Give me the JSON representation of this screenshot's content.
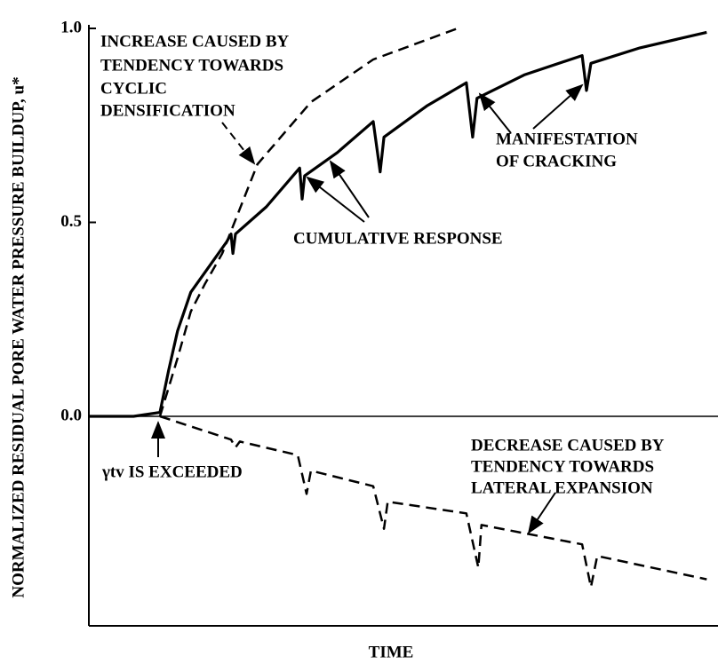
{
  "chart_data": {
    "type": "line",
    "y_label": "NORMALIZED RESIDUAL PORE WATER PRESSURE BUILDUP, u*",
    "x_label": "TIME",
    "xlim": [
      0,
      100
    ],
    "ylim": [
      -0.54,
      1.0
    ],
    "yticks": [
      {
        "value": 0,
        "label": "0.0"
      },
      0.5,
      {
        "value": 1,
        "label": "1.0"
      }
    ],
    "series": [
      {
        "color": "#000000",
        "style": "dashed",
        "x": [
          11.3,
          14.1,
          16.2,
          18.4,
          21.2,
          26.8,
          35.3,
          45.2,
          58.6
        ],
        "values": [
          0.0,
          0.15,
          0.27,
          0.34,
          0.42,
          0.65,
          0.81,
          0.92,
          1.0
        ]
      },
      {
        "color": "#000000",
        "style": "solid",
        "x": [
          0,
          7.1,
          11.3,
          12.7,
          14.1,
          16.2,
          18.4,
          21.9,
          22.6,
          22.9,
          23.3,
          28.2,
          33.5,
          33.9,
          34.3,
          39.5,
          45.2,
          46.3,
          46.9,
          53.7,
          60.0,
          61.0,
          61.7,
          69.2,
          78.4,
          79.1,
          79.8,
          87.6,
          98.2
        ],
        "values": [
          0.0,
          0.0,
          0.01,
          0.12,
          0.22,
          0.32,
          0.37,
          0.45,
          0.47,
          0.42,
          0.47,
          0.54,
          0.64,
          0.56,
          0.62,
          0.68,
          0.76,
          0.63,
          0.72,
          0.8,
          0.86,
          0.72,
          0.82,
          0.88,
          0.93,
          0.84,
          0.91,
          0.95,
          0.99
        ]
      },
      {
        "color": "#000000",
        "style": "dashed",
        "x": [
          11.3,
          22.6,
          23.3,
          24.0,
          33.2,
          34.6,
          35.3,
          45.2,
          46.9,
          47.5,
          60.0,
          61.9,
          62.4,
          78.4,
          79.8,
          80.8,
          98.2
        ],
        "values": [
          0.0,
          -0.06,
          -0.08,
          -0.065,
          -0.1,
          -0.2,
          -0.14,
          -0.18,
          -0.29,
          -0.22,
          -0.25,
          -0.39,
          -0.28,
          -0.33,
          -0.44,
          -0.36,
          -0.42
        ]
      }
    ],
    "annotations": [
      {
        "lines": [
          "INCREASE CAUSED BY",
          "TENDENCY TOWARDS",
          "CYCLIC",
          "DENSIFICATION"
        ]
      },
      {
        "lines": [
          "MANIFESTATION",
          "OF CRACKING"
        ]
      },
      {
        "lines": [
          "CUMULATIVE RESPONSE"
        ]
      },
      {
        "lines": [
          "γtv IS EXCEEDED"
        ]
      },
      {
        "lines": [
          "DECREASE CAUSED BY",
          "TENDENCY TOWARDS",
          "LATERAL EXPANSION"
        ]
      }
    ]
  }
}
